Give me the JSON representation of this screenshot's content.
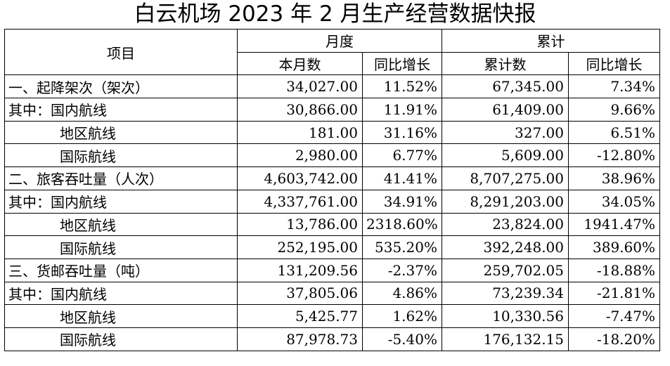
{
  "title": "白云机场 2023 年 2 月生产经营数据快报",
  "headers": {
    "item": "项目",
    "monthly": "月度",
    "cumulative": "累计",
    "this_month": "本月数",
    "yoy_month": "同比增长",
    "cum_count": "累计数",
    "yoy_cum": "同比增长"
  },
  "rows": [
    {
      "label": "一、起降架次（架次）",
      "month": "34,027.00",
      "month_yoy": "11.52%",
      "cum": "67,345.00",
      "cum_yoy": "7.34%"
    },
    {
      "label": "其中：国内航线",
      "month": "30,866.00",
      "month_yoy": "11.91%",
      "cum": "61,409.00",
      "cum_yoy": "9.66%"
    },
    {
      "label": "地区航线",
      "month": "181.00",
      "month_yoy": "31.16%",
      "cum": "327.00",
      "cum_yoy": "6.51%"
    },
    {
      "label": "国际航线",
      "month": "2,980.00",
      "month_yoy": "6.77%",
      "cum": "5,609.00",
      "cum_yoy": "-12.80%"
    },
    {
      "label": "二、旅客吞吐量（人次）",
      "month": "4,603,742.00",
      "month_yoy": "41.41%",
      "cum": "8,707,275.00",
      "cum_yoy": "38.96%"
    },
    {
      "label": "其中：国内航线",
      "month": "4,337,761.00",
      "month_yoy": "34.91%",
      "cum": "8,291,203.00",
      "cum_yoy": "34.05%"
    },
    {
      "label": "地区航线",
      "month": "13,786.00",
      "month_yoy": "2318.60%",
      "cum": "23,824.00",
      "cum_yoy": "1941.47%"
    },
    {
      "label": "国际航线",
      "month": "252,195.00",
      "month_yoy": "535.20%",
      "cum": "392,248.00",
      "cum_yoy": "389.60%"
    },
    {
      "label": "三、货邮吞吐量（吨）",
      "month": "131,209.56",
      "month_yoy": "-2.37%",
      "cum": "259,702.05",
      "cum_yoy": "-18.88%"
    },
    {
      "label": "其中：国内航线",
      "month": "37,805.06",
      "month_yoy": "4.86%",
      "cum": "73,239.34",
      "cum_yoy": "-21.81%"
    },
    {
      "label": "地区航线",
      "month": "5,425.77",
      "month_yoy": "1.62%",
      "cum": "10,330.56",
      "cum_yoy": "-7.47%"
    },
    {
      "label": "国际航线",
      "month": "87,978.73",
      "month_yoy": "-5.40%",
      "cum": "176,132.15",
      "cum_yoy": "-18.20%"
    }
  ]
}
